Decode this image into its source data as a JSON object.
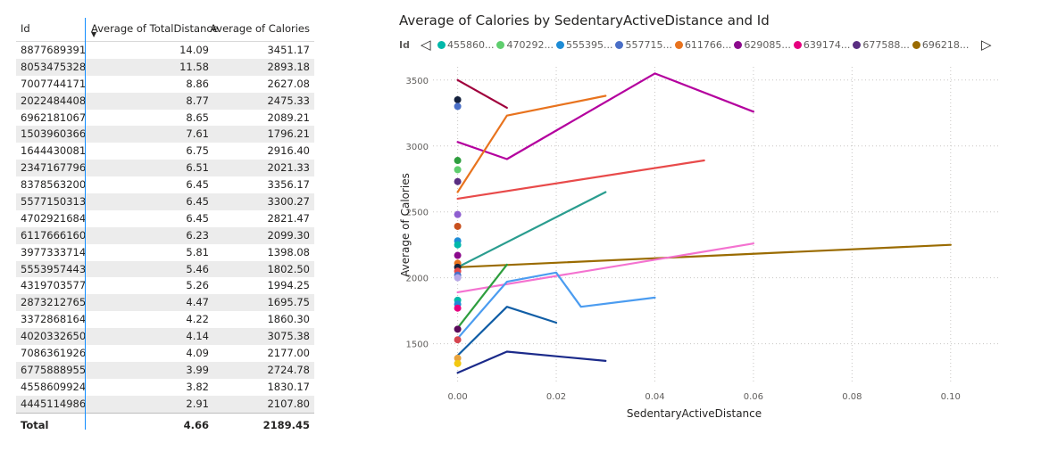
{
  "table": {
    "headers": {
      "id": "Id",
      "distance": "Average of TotalDistance",
      "calories": "Average of Calories"
    },
    "sort_indicator": "▼",
    "rows": [
      {
        "id": "8877689391",
        "distance": "14.09",
        "calories": "3451.17"
      },
      {
        "id": "8053475328",
        "distance": "11.58",
        "calories": "2893.18"
      },
      {
        "id": "7007744171",
        "distance": "8.86",
        "calories": "2627.08"
      },
      {
        "id": "2022484408",
        "distance": "8.77",
        "calories": "2475.33"
      },
      {
        "id": "6962181067",
        "distance": "8.65",
        "calories": "2089.21"
      },
      {
        "id": "1503960366",
        "distance": "7.61",
        "calories": "1796.21"
      },
      {
        "id": "1644430081",
        "distance": "6.75",
        "calories": "2916.40"
      },
      {
        "id": "2347167796",
        "distance": "6.51",
        "calories": "2021.33"
      },
      {
        "id": "8378563200",
        "distance": "6.45",
        "calories": "3356.17"
      },
      {
        "id": "5577150313",
        "distance": "6.45",
        "calories": "3300.27"
      },
      {
        "id": "4702921684",
        "distance": "6.45",
        "calories": "2821.47"
      },
      {
        "id": "6117666160",
        "distance": "6.23",
        "calories": "2099.30"
      },
      {
        "id": "3977333714",
        "distance": "5.81",
        "calories": "1398.08"
      },
      {
        "id": "5553957443",
        "distance": "5.46",
        "calories": "1802.50"
      },
      {
        "id": "4319703577",
        "distance": "5.26",
        "calories": "1994.25"
      },
      {
        "id": "2873212765",
        "distance": "4.47",
        "calories": "1695.75"
      },
      {
        "id": "3372868164",
        "distance": "4.22",
        "calories": "1860.30"
      },
      {
        "id": "4020332650",
        "distance": "4.14",
        "calories": "3075.38"
      },
      {
        "id": "7086361926",
        "distance": "4.09",
        "calories": "2177.00"
      },
      {
        "id": "6775888955",
        "distance": "3.99",
        "calories": "2724.78"
      },
      {
        "id": "4558609924",
        "distance": "3.82",
        "calories": "1830.17"
      },
      {
        "id": "4445114986",
        "distance": "2.91",
        "calories": "2107.80"
      }
    ],
    "total": {
      "label": "Total",
      "distance": "4.66",
      "calories": "2189.45"
    }
  },
  "legend": {
    "title": "Id",
    "prev_icon": "◁",
    "next_icon": "▷",
    "items": [
      {
        "label": "455860...",
        "color": "#01B8AA"
      },
      {
        "label": "470292...",
        "color": "#5FCE6E"
      },
      {
        "label": "555395...",
        "color": "#1E8CD6"
      },
      {
        "label": "557715...",
        "color": "#4A6FC7"
      },
      {
        "label": "611766...",
        "color": "#E8731E"
      },
      {
        "label": "629085...",
        "color": "#8B0A8C"
      },
      {
        "label": "639174...",
        "color": "#E6007E"
      },
      {
        "label": "677588...",
        "color": "#5A2E82"
      },
      {
        "label": "696218...",
        "color": "#9A6B00"
      }
    ]
  },
  "chart_data": {
    "type": "line",
    "title": "Average of Calories by SedentaryActiveDistance and Id",
    "xlabel": "SedentaryActiveDistance",
    "ylabel": "Average of Calories",
    "xlim": [
      -0.005,
      0.11
    ],
    "ylim": [
      1200,
      3600
    ],
    "x_ticks": [
      0.0,
      0.02,
      0.04,
      0.06,
      0.08,
      0.1
    ],
    "x_tick_labels": [
      "0.00",
      "0.02",
      "0.04",
      "0.06",
      "0.08",
      "0.10"
    ],
    "y_ticks": [
      1500,
      2000,
      2500,
      3000,
      3500
    ],
    "y_tick_labels": [
      "1500",
      "2000",
      "2500",
      "3000",
      "3500"
    ],
    "grid": true,
    "series": [
      {
        "color": "#B4009E",
        "points": [
          [
            0,
            3030
          ],
          [
            0.01,
            2900
          ],
          [
            0.04,
            3550
          ],
          [
            0.06,
            3260
          ]
        ]
      },
      {
        "color": "#E8731E",
        "points": [
          [
            0,
            2650
          ],
          [
            0.01,
            3230
          ],
          [
            0.03,
            3380
          ]
        ]
      },
      {
        "color": "#E84A4A",
        "points": [
          [
            0,
            2600
          ],
          [
            0.05,
            2890
          ]
        ]
      },
      {
        "color": "#2A9D8F",
        "points": [
          [
            0,
            2080
          ],
          [
            0.03,
            2650
          ]
        ]
      },
      {
        "color": "#9A6B00",
        "points": [
          [
            0,
            2080
          ],
          [
            0.1,
            2250
          ]
        ]
      },
      {
        "color": "#F472D0",
        "points": [
          [
            0,
            1890
          ],
          [
            0.06,
            2260
          ]
        ]
      },
      {
        "color": "#4B9CF0",
        "points": [
          [
            0,
            1540
          ],
          [
            0.01,
            1970
          ],
          [
            0.02,
            2040
          ],
          [
            0.025,
            1780
          ],
          [
            0.04,
            1850
          ]
        ]
      },
      {
        "color": "#2E9E3E",
        "points": [
          [
            0,
            1620
          ],
          [
            0.01,
            2100
          ]
        ]
      },
      {
        "color": "#115EA6",
        "points": [
          [
            0,
            1410
          ],
          [
            0.01,
            1780
          ],
          [
            0.02,
            1660
          ]
        ]
      },
      {
        "color": "#1B2A8A",
        "points": [
          [
            0,
            1280
          ],
          [
            0.01,
            1440
          ],
          [
            0.03,
            1370
          ]
        ]
      },
      {
        "color": "#A0003C",
        "points": [
          [
            0,
            3500
          ],
          [
            0.01,
            3290
          ]
        ]
      }
    ],
    "points": [
      {
        "x": 0,
        "y": 3350,
        "color": "#14213D"
      },
      {
        "x": 0,
        "y": 3300,
        "color": "#4A6FC7"
      },
      {
        "x": 0,
        "y": 2890,
        "color": "#2E9E3E"
      },
      {
        "x": 0,
        "y": 2820,
        "color": "#5FCE6E"
      },
      {
        "x": 0,
        "y": 2730,
        "color": "#5A2E82"
      },
      {
        "x": 0,
        "y": 2480,
        "color": "#8E5FD0"
      },
      {
        "x": 0,
        "y": 2390,
        "color": "#C8501E"
      },
      {
        "x": 0,
        "y": 2280,
        "color": "#1E8CD6"
      },
      {
        "x": 0,
        "y": 2250,
        "color": "#01B8AA"
      },
      {
        "x": 0,
        "y": 2170,
        "color": "#8B0A8C"
      },
      {
        "x": 0,
        "y": 2110,
        "color": "#E8731E"
      },
      {
        "x": 0,
        "y": 2080,
        "color": "#14213D"
      },
      {
        "x": 0,
        "y": 2050,
        "color": "#E84A4A"
      },
      {
        "x": 0,
        "y": 2020,
        "color": "#4A6FC7"
      },
      {
        "x": 0,
        "y": 2000,
        "color": "#B7A7E8"
      },
      {
        "x": 0,
        "y": 1830,
        "color": "#01B8AA"
      },
      {
        "x": 0,
        "y": 1800,
        "color": "#1E8CD6"
      },
      {
        "x": 0,
        "y": 1770,
        "color": "#E6007E"
      },
      {
        "x": 0,
        "y": 1610,
        "color": "#5A0A5A"
      },
      {
        "x": 0,
        "y": 1530,
        "color": "#D64550"
      },
      {
        "x": 0,
        "y": 1390,
        "color": "#E8A33D"
      },
      {
        "x": 0,
        "y": 1350,
        "color": "#F2C811"
      }
    ]
  }
}
